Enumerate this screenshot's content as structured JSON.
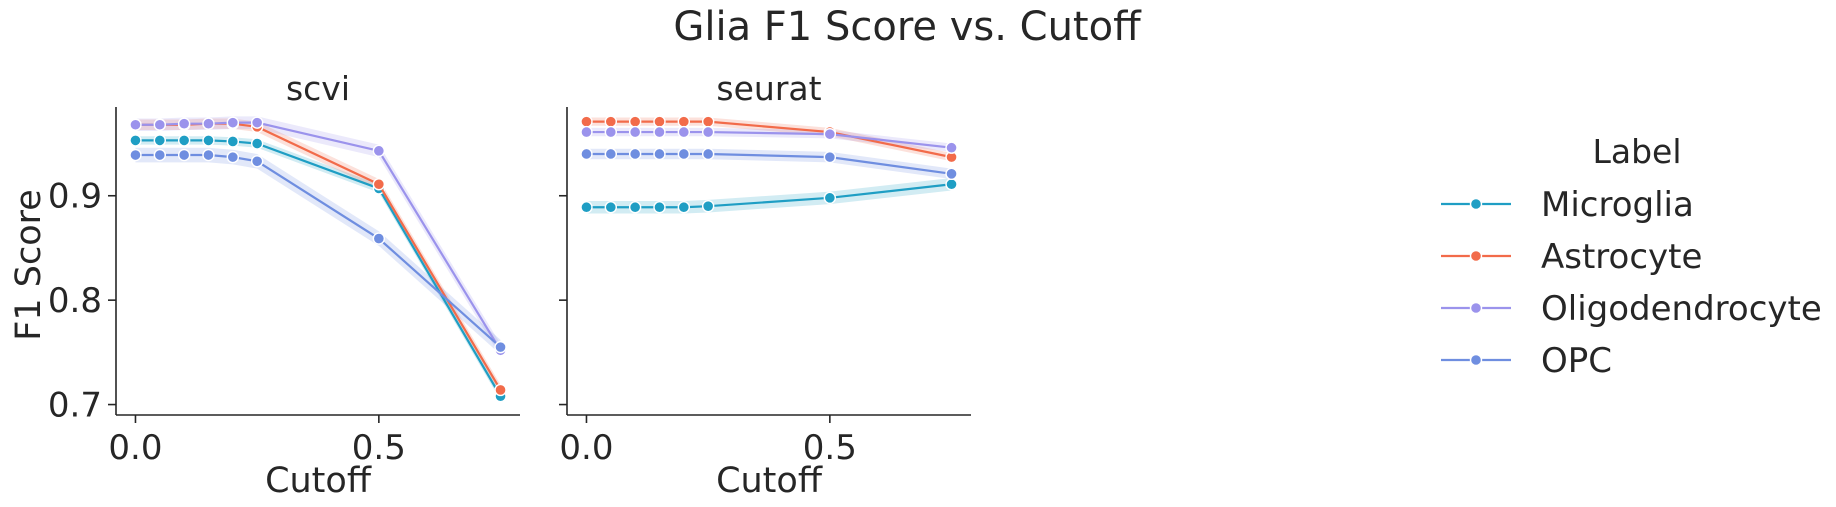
{
  "chart_data": {
    "type": "line",
    "title": "Glia F1 Score vs. Cutoff",
    "ylabel": "F1 Score",
    "xlabel": "Cutoff",
    "ylim": [
      0.69,
      0.985
    ],
    "xlim": [
      -0.04,
      0.79
    ],
    "yticks": [
      {
        "v": 0.7,
        "label": "0.7"
      },
      {
        "v": 0.8,
        "label": "0.8"
      },
      {
        "v": 0.9,
        "label": "0.9"
      }
    ],
    "xticks": [
      {
        "v": 0.0,
        "label": "0.0"
      },
      {
        "v": 0.5,
        "label": "0.5"
      }
    ],
    "x": [
      0.0,
      0.05,
      0.1,
      0.15,
      0.2,
      0.25,
      0.5,
      0.75
    ],
    "legend": {
      "title": "Label",
      "placement": "right"
    },
    "panels": [
      {
        "title": "scvi",
        "series": [
          {
            "name": "Microglia",
            "color": "#1f9ec4",
            "values": [
              0.953,
              0.953,
              0.953,
              0.953,
              0.952,
              0.95,
              0.907,
              0.708
            ],
            "ci": 0.004
          },
          {
            "name": "Astrocyte",
            "color": "#f26b4a",
            "values": [
              0.968,
              0.968,
              0.968,
              0.969,
              0.969,
              0.966,
              0.911,
              0.714
            ],
            "ci": 0.005
          },
          {
            "name": "Oligodendrocyte",
            "color": "#9b93ec",
            "values": [
              0.968,
              0.968,
              0.969,
              0.969,
              0.97,
              0.97,
              0.943,
              0.752
            ],
            "ci": 0.006
          },
          {
            "name": "OPC",
            "color": "#6f8ee0",
            "values": [
              0.939,
              0.939,
              0.939,
              0.939,
              0.937,
              0.933,
              0.859,
              0.755
            ],
            "ci": 0.007
          }
        ]
      },
      {
        "title": "seurat",
        "series": [
          {
            "name": "Microglia",
            "color": "#1f9ec4",
            "values": [
              0.889,
              0.889,
              0.889,
              0.889,
              0.889,
              0.89,
              0.898,
              0.911
            ],
            "ci": 0.006
          },
          {
            "name": "Astrocyte",
            "color": "#f26b4a",
            "values": [
              0.971,
              0.971,
              0.971,
              0.971,
              0.971,
              0.971,
              0.961,
              0.937
            ],
            "ci": 0.004
          },
          {
            "name": "Oligodendrocyte",
            "color": "#9b93ec",
            "values": [
              0.961,
              0.961,
              0.961,
              0.961,
              0.961,
              0.961,
              0.959,
              0.946
            ],
            "ci": 0.004
          },
          {
            "name": "OPC",
            "color": "#6f8ee0",
            "values": [
              0.94,
              0.94,
              0.94,
              0.94,
              0.94,
              0.94,
              0.937,
              0.921
            ],
            "ci": 0.005
          }
        ]
      }
    ]
  }
}
